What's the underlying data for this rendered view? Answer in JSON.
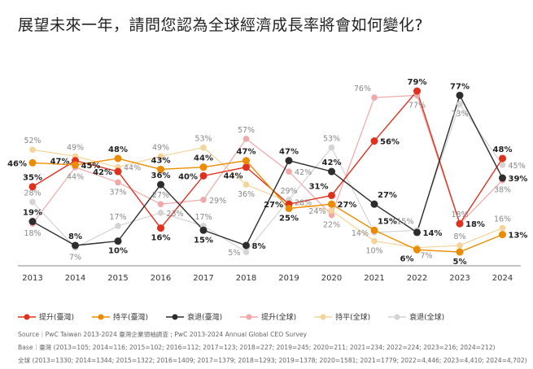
{
  "chart_data": {
    "type": "line",
    "title": "展望未來一年，請問您認為全球經濟成長率將會如何變化?",
    "categories": [
      "2013",
      "2014",
      "2015",
      "2016",
      "2017",
      "2018",
      "2019",
      "2020",
      "2021",
      "2022",
      "2023",
      "2024"
    ],
    "ylim": [
      0,
      80
    ],
    "grid": false,
    "legend": "bottom",
    "series": [
      {
        "name": "提升(全球)",
        "color": "#f0a8a8",
        "values": [
          18,
          44,
          37,
          27,
          29,
          57,
          42,
          22,
          76,
          77,
          18,
          38
        ]
      },
      {
        "name": "持平(全球)",
        "color": "#f5d49a",
        "values": [
          52,
          49,
          44,
          49,
          53,
          36,
          28,
          24,
          10,
          7,
          8,
          16
        ]
      },
      {
        "name": "衰退(全球)",
        "color": "#d4d4d4",
        "values": [
          28,
          7,
          17,
          23,
          17,
          5,
          29,
          53,
          14,
          15,
          73,
          45
        ]
      },
      {
        "name": "提升(臺灣)",
        "color": "#e0301e",
        "values": [
          35,
          47,
          42,
          16,
          40,
          44,
          27,
          31,
          56,
          79,
          18,
          48
        ]
      },
      {
        "name": "持平(臺灣)",
        "color": "#eb8c00",
        "values": [
          46,
          45,
          48,
          43,
          44,
          47,
          25,
          27,
          15,
          6,
          5,
          13
        ]
      },
      {
        "name": "衰退(臺灣)",
        "color": "#2d2d2d",
        "values": [
          19,
          8,
          10,
          36,
          15,
          8,
          47,
          42,
          27,
          14,
          77,
          39
        ]
      }
    ],
    "legend_order": [
      3,
      4,
      5,
      0,
      1,
      2
    ]
  },
  "footer": {
    "source": "Source｜PwC Taiwan 2013-2024 臺灣企業領袖調查 ; PwC 2013-2024 Annual Global CEO Survey",
    "base_tw": "Base｜臺灣 (2013=105; 2014=116; 2015=102; 2016=112; 2017=123; 2018=227; 2019=245; 2020=211; 2021=234; 2022=224; 2023=216; 2024=212)",
    "base_global": "全球 (2013=1330; 2014=1344; 2015=1322; 2016=1409; 2017=1379; 2018=1293; 2019=1378; 2020=1581; 2021=1779; 2022=4,446; 2023=4,410; 2024=4,702)"
  }
}
